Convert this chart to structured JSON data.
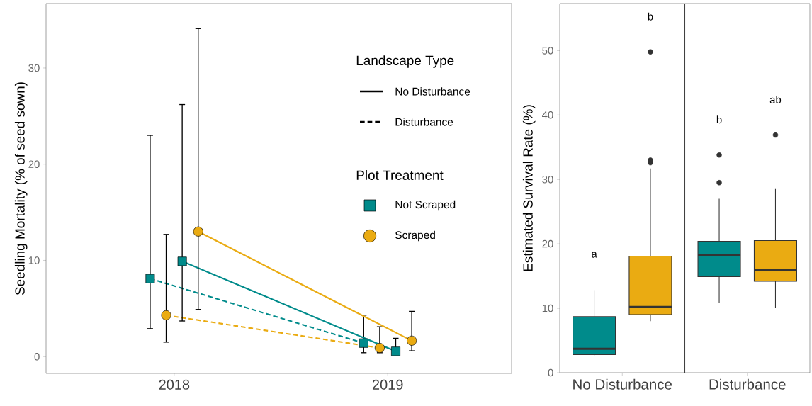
{
  "chart_data": [
    {
      "type": "line",
      "ylabel": "Seedling Mortality (% of seed sown)",
      "xlim": [
        2017.4,
        2019.58
      ],
      "xticks": [
        2018,
        2019
      ],
      "ylim": [
        -1.75,
        36.7
      ],
      "yticks": [
        0,
        10,
        20,
        30
      ],
      "legend_title": "Landscape Type",
      "annotations": [
        "No Disturbance",
        "Disturbance",
        "Plot Treatment",
        "Not Scraped",
        "Scraped"
      ],
      "series": [
        {
          "color": "#008b8b",
          "line_style": "dashed",
          "marker": "square",
          "x": [
            2017.8875,
            2018.8875
          ],
          "values": [
            8.1,
            1.4
          ],
          "errors": [
            [
              2.9,
              23.0
            ],
            [
              0.4,
              4.3
            ]
          ]
        },
        {
          "color": "#eaab12",
          "line_style": "dashed",
          "marker": "circle",
          "x": [
            2017.9625,
            2018.9625
          ],
          "values": [
            4.3,
            0.9
          ],
          "errors": [
            [
              1.5,
              12.7
            ],
            [
              0.4,
              3.1
            ]
          ]
        },
        {
          "color": "#008b8b",
          "line_style": "solid",
          "marker": "square",
          "x": [
            2018.0375,
            2019.0375
          ],
          "values": [
            9.9,
            0.55
          ],
          "errors": [
            [
              3.7,
              26.2
            ],
            [
              0.3,
              1.9
            ]
          ]
        },
        {
          "color": "#eaab12",
          "line_style": "solid",
          "marker": "circle",
          "x": [
            2018.1125,
            2019.1125
          ],
          "values": [
            13.0,
            1.65
          ],
          "errors": [
            [
              4.9,
              34.1
            ],
            [
              0.6,
              4.7
            ]
          ]
        }
      ]
    },
    {
      "type": "box",
      "ylabel": "Estimated Survival Rate (%)",
      "categories": [
        "No Disturbance",
        "Disturbance"
      ],
      "ylim": [
        0,
        57.3
      ],
      "yticks": [
        0,
        10,
        20,
        30,
        40,
        50
      ],
      "series": [
        {
          "color": "#008b8b",
          "boxes": [
            {
              "low": 2.6,
              "q1": 2.8,
              "median": 3.7,
              "q3": 8.7,
              "high": 12.8
            },
            {
              "low": 10.9,
              "q1": 14.9,
              "median": 18.3,
              "q3": 20.4,
              "high": 27.0,
              "outliers": [
                29.5,
                33.8
              ]
            }
          ]
        },
        {
          "color": "#eaab12",
          "boxes": [
            {
              "low": 8.0,
              "q1": 9.0,
              "median": 10.2,
              "q3": 18.1,
              "high": 31.7,
              "outliers": [
                32.6,
                33.0,
                49.8
              ]
            },
            {
              "low": 10.1,
              "q1": 14.2,
              "median": 15.9,
              "q3": 20.5,
              "high": 28.5,
              "outliers": [
                36.9
              ]
            }
          ]
        }
      ],
      "annotations": [
        "a",
        "b",
        "b",
        "ab"
      ]
    }
  ]
}
